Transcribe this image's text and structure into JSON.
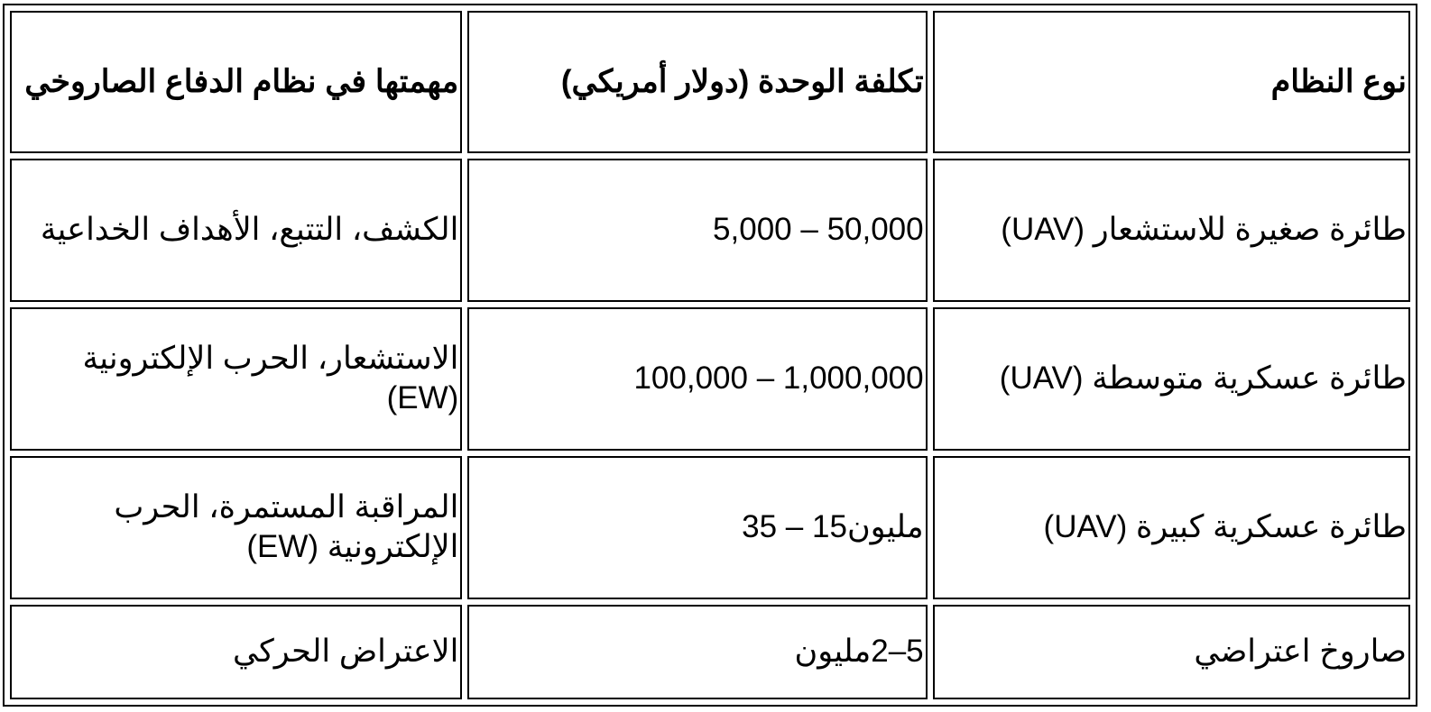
{
  "table": {
    "headers": [
      "نوع النظام",
      "تكلفة الوحدة (دولار أمريكي)",
      "مهمتها في نظام الدفاع الصاروخي"
    ],
    "rows": [
      [
        "طائرة صغيرة للاستشعار (UAV)",
        "50,000 – 5,000",
        "الكشف، التتبع، الأهداف الخداعية"
      ],
      [
        "طائرة عسكرية متوسطة (UAV)",
        "1,000,000 – 100,000",
        "الاستشعار، الحرب الإلكترونية (EW)"
      ],
      [
        "طائرة عسكرية كبيرة (UAV)",
        "مليون15 – 35",
        "المراقبة المستمرة، الحرب الإلكترونية (EW)"
      ],
      [
        "صاروخ اعتراضي",
        "5–2مليون",
        "الاعتراض الحركي"
      ]
    ]
  }
}
